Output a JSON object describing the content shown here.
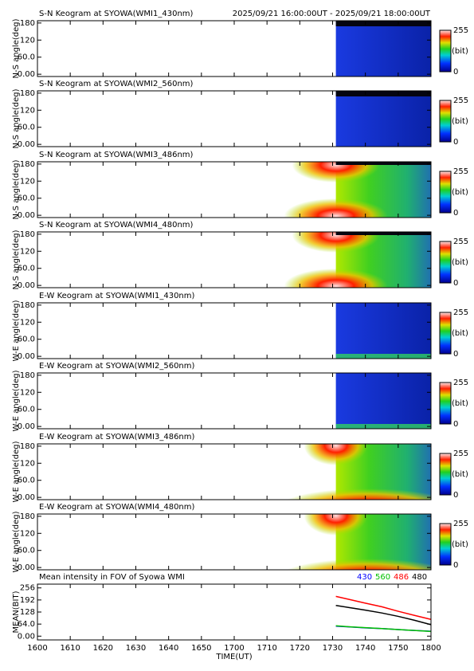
{
  "chart_data": [
    {
      "type": "heatmap",
      "title": "S-N Keogram at SYOWA(WMI1_430nm)",
      "subtitle": "2025/09/21 16:00:00UT - 2025/09/21 18:00:00UT",
      "ylabel": "N-S angle(deg)",
      "ylim": [
        -8,
        188
      ],
      "yticks": [
        {
          "value": 0,
          "label": "0.00"
        },
        {
          "value": 60,
          "label": "60.0"
        },
        120,
        180
      ],
      "colorbar_ticks": [
        0,
        255
      ],
      "colorbar_label": "(bit)",
      "colormap": "dim"
    },
    {
      "type": "heatmap",
      "title": "S-N Keogram at SYOWA(WMI2_560nm)",
      "ylabel": "N-S angle(deg)",
      "ylim": [
        -8,
        188
      ],
      "yticks": [
        {
          "value": 0,
          "label": "0.00"
        },
        {
          "value": 60,
          "label": "60.0"
        },
        120,
        180
      ],
      "colorbar_ticks": [
        0,
        255
      ],
      "colorbar_label": "(bit)",
      "colormap": "dim"
    },
    {
      "type": "heatmap",
      "title": "S-N Keogram at SYOWA(WMI3_486nm)",
      "ylabel": "N-S angle(deg)",
      "ylim": [
        -8,
        188
      ],
      "yticks": [
        {
          "value": 0,
          "label": "0.00"
        },
        {
          "value": 60,
          "label": "60.0"
        },
        120,
        180
      ],
      "colorbar_ticks": [
        0,
        255
      ],
      "colorbar_label": "(bit)",
      "colormap": "bright"
    },
    {
      "type": "heatmap",
      "title": "S-N Keogram at SYOWA(WMI4_480nm)",
      "ylabel": "N-S angle(deg)",
      "ylim": [
        -8,
        188
      ],
      "yticks": [
        {
          "value": 0,
          "label": "0.00"
        },
        {
          "value": 60,
          "label": "60.0"
        },
        120,
        180
      ],
      "colorbar_ticks": [
        0,
        255
      ],
      "colorbar_label": "(bit)",
      "colormap": "bright"
    },
    {
      "type": "heatmap",
      "title": "E-W Keogram at SYOWA(WMI1_430nm)",
      "ylabel": "W-E angle(deg)",
      "ylim": [
        -8,
        188
      ],
      "yticks": [
        {
          "value": 0,
          "label": "0.00"
        },
        {
          "value": 60,
          "label": "60.0"
        },
        120,
        180
      ],
      "colorbar_ticks": [
        0,
        255
      ],
      "colorbar_label": "(bit)",
      "colormap": "dim"
    },
    {
      "type": "heatmap",
      "title": "E-W Keogram at SYOWA(WMI2_560nm)",
      "ylabel": "W-E angle(deg)",
      "ylim": [
        -8,
        188
      ],
      "yticks": [
        {
          "value": 0,
          "label": "0.00"
        },
        {
          "value": 60,
          "label": "60.0"
        },
        120,
        180
      ],
      "colorbar_ticks": [
        0,
        255
      ],
      "colorbar_label": "(bit)",
      "colormap": "dim"
    },
    {
      "type": "heatmap",
      "title": "E-W Keogram at SYOWA(WMI3_486nm)",
      "ylabel": "W-E angle(deg)",
      "ylim": [
        -8,
        188
      ],
      "yticks": [
        {
          "value": 0,
          "label": "0.00"
        },
        {
          "value": 60,
          "label": "60.0"
        },
        120,
        180
      ],
      "colorbar_ticks": [
        0,
        255
      ],
      "colorbar_label": "(bit)",
      "colormap": "bright"
    },
    {
      "type": "heatmap",
      "title": "E-W Keogram at SYOWA(WMI4_480nm)",
      "ylabel": "W-E angle(deg)",
      "ylim": [
        -8,
        188
      ],
      "yticks": [
        {
          "value": 0,
          "label": "0.00"
        },
        {
          "value": 60,
          "label": "60.0"
        },
        120,
        180
      ],
      "colorbar_ticks": [
        0,
        255
      ],
      "colorbar_label": "(bit)",
      "colormap": "bright"
    },
    {
      "type": "line",
      "title": "Mean intensity in FOV of Syowa WMI",
      "xlabel": "TIME(UT)",
      "ylabel": "MEAN(BIT)",
      "xlim": [
        0,
        120
      ],
      "xticks": [
        {
          "value": 0,
          "label": "1600"
        },
        {
          "value": 10,
          "label": "1610"
        },
        {
          "value": 20,
          "label": "1620"
        },
        {
          "value": 30,
          "label": "1630"
        },
        {
          "value": 40,
          "label": "1640"
        },
        {
          "value": 50,
          "label": "1650"
        },
        {
          "value": 60,
          "label": "1700"
        },
        {
          "value": 70,
          "label": "1710"
        },
        {
          "value": 80,
          "label": "1720"
        },
        {
          "value": 90,
          "label": "1730"
        },
        {
          "value": 100,
          "label": "1740"
        },
        {
          "value": 110,
          "label": "1750"
        },
        {
          "value": 120,
          "label": "1800"
        }
      ],
      "ylim": [
        -20,
        276
      ],
      "yticks": [
        {
          "value": 0,
          "label": "0.00"
        },
        {
          "value": 64,
          "label": "64.0"
        },
        128,
        192,
        256
      ],
      "x": [
        91,
        95,
        100,
        105,
        110,
        115,
        120
      ],
      "series": [
        {
          "name": "430",
          "color": "#0000ff",
          "values": [
            53,
            49,
            44,
            40,
            35,
            30,
            26
          ]
        },
        {
          "name": "560",
          "color": "#00c000",
          "values": [
            55,
            50,
            45,
            40,
            35,
            30,
            25
          ]
        },
        {
          "name": "486",
          "color": "#ff0000",
          "values": [
            211,
            195,
            175,
            156,
            132,
            110,
            89
          ]
        },
        {
          "name": "480",
          "color": "#000000",
          "values": [
            163,
            152,
            138,
            123,
            105,
            84,
            61
          ]
        }
      ]
    }
  ]
}
